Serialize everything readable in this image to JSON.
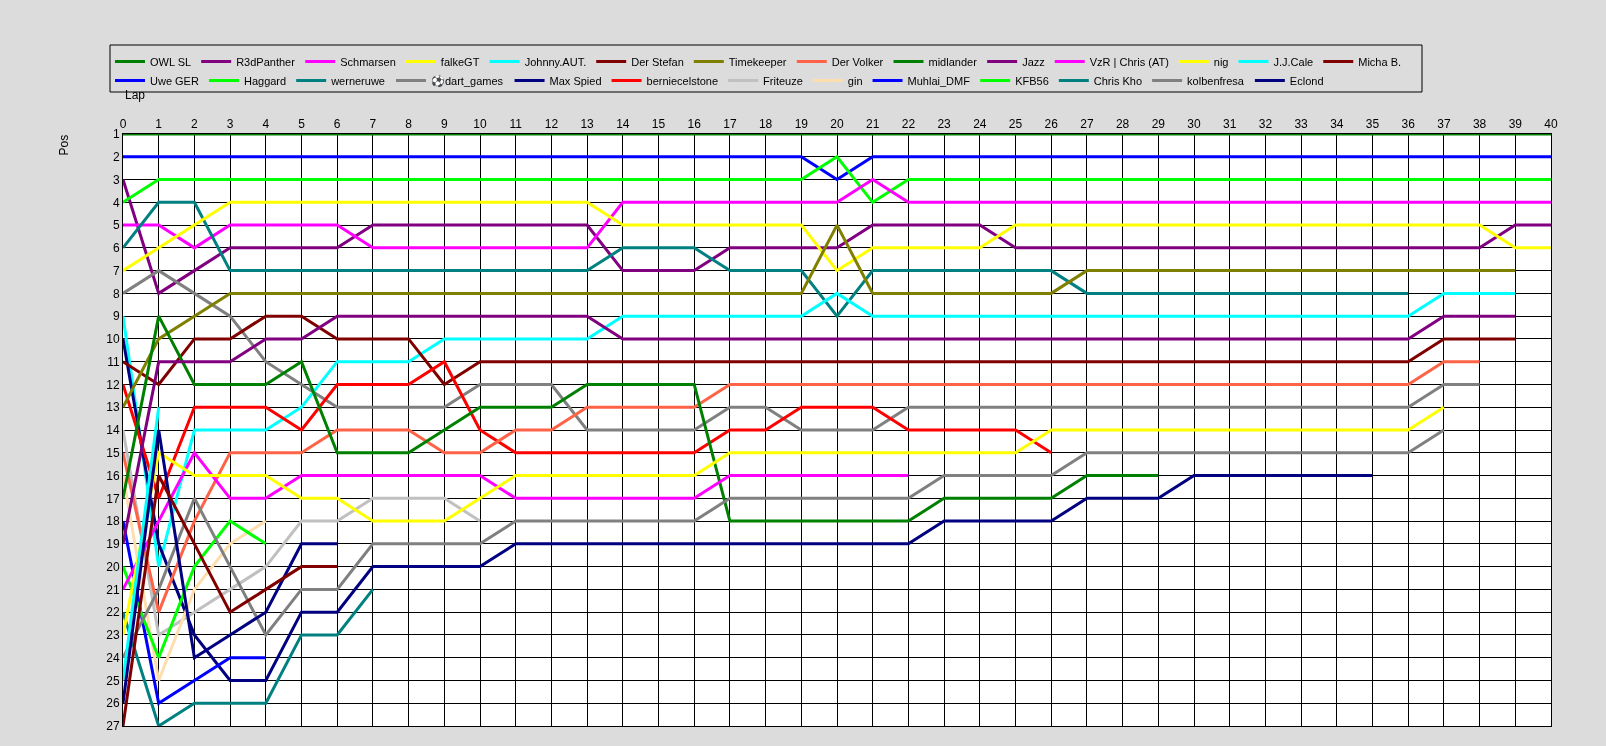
{
  "chart_data": {
    "type": "line",
    "xlabel": "Lap",
    "ylabel": "Pos",
    "x": [
      0,
      1,
      2,
      3,
      4,
      5,
      6,
      7,
      8,
      9,
      10,
      11,
      12,
      13,
      14,
      15,
      16,
      17,
      18,
      19,
      20,
      21,
      22,
      23,
      24,
      25,
      26,
      27,
      28,
      29,
      30,
      31,
      32,
      33,
      34,
      35,
      36,
      37,
      38,
      39,
      40
    ],
    "xlim": [
      0,
      40
    ],
    "xticks": [
      0,
      1,
      2,
      3,
      4,
      5,
      6,
      7,
      8,
      9,
      10,
      11,
      12,
      13,
      14,
      15,
      16,
      17,
      18,
      19,
      20,
      21,
      22,
      23,
      24,
      25,
      26,
      27,
      28,
      29,
      30,
      31,
      32,
      33,
      34,
      35,
      36,
      37,
      38,
      39,
      40
    ],
    "ylim": [
      27,
      1
    ],
    "yticks": [
      1,
      2,
      3,
      4,
      5,
      6,
      7,
      8,
      9,
      10,
      11,
      12,
      13,
      14,
      15,
      16,
      17,
      18,
      19,
      20,
      21,
      22,
      23,
      24,
      25,
      26,
      27
    ],
    "grid": true,
    "legend": "top",
    "marker": "none",
    "line_style": "solid",
    "series": [
      {
        "name": "OWL SL",
        "color": "#008000",
        "values": [
          1,
          1,
          1,
          1,
          1,
          1,
          1,
          1,
          1,
          1,
          1,
          1,
          1,
          1,
          1,
          1,
          1,
          1,
          1,
          1,
          1,
          1,
          1,
          1,
          1,
          1,
          1,
          1,
          1,
          1,
          1,
          1,
          1,
          1,
          1,
          1,
          1,
          1,
          1,
          1,
          1
        ]
      },
      {
        "name": "Uwe GER",
        "color": "#0000ff",
        "values": [
          2,
          2,
          2,
          2,
          2,
          2,
          2,
          2,
          2,
          2,
          2,
          2,
          2,
          2,
          2,
          2,
          2,
          2,
          2,
          2,
          3,
          2,
          2,
          2,
          2,
          2,
          2,
          2,
          2,
          2,
          2,
          2,
          2,
          2,
          2,
          2,
          2,
          2,
          2,
          2,
          2
        ]
      },
      {
        "name": "R3dPanther",
        "color": "#800080",
        "values": [
          3,
          8,
          7,
          6,
          6,
          6,
          6,
          5,
          5,
          5,
          5,
          5,
          5,
          5,
          7,
          7,
          7,
          6,
          6,
          6,
          6,
          5,
          5,
          5,
          5,
          6,
          6,
          6,
          6,
          6,
          6,
          6,
          6,
          6,
          6,
          6,
          6,
          6,
          6,
          5,
          5
        ]
      },
      {
        "name": "Haggard",
        "color": "#00ff00",
        "values": [
          4,
          3,
          3,
          3,
          3,
          3,
          3,
          3,
          3,
          3,
          3,
          3,
          3,
          3,
          3,
          3,
          3,
          3,
          3,
          3,
          2,
          4,
          3,
          3,
          3,
          3,
          3,
          3,
          3,
          3,
          3,
          3,
          3,
          3,
          3,
          3,
          3,
          3,
          3,
          3,
          3
        ]
      },
      {
        "name": "Schmarsen",
        "color": "#ff00ff",
        "values": [
          5,
          5,
          6,
          5,
          5,
          5,
          5,
          6,
          6,
          6,
          6,
          6,
          6,
          6,
          4,
          4,
          4,
          4,
          4,
          4,
          4,
          3,
          4,
          4,
          4,
          4,
          4,
          4,
          4,
          4,
          4,
          4,
          4,
          4,
          4,
          4,
          4,
          4,
          4,
          4,
          4
        ]
      },
      {
        "name": "werneruwe",
        "color": "#008080",
        "values": [
          6,
          4,
          4,
          7,
          7,
          7,
          7,
          7,
          7,
          7,
          7,
          7,
          7,
          7,
          6,
          6,
          6,
          7,
          7,
          7,
          9,
          7,
          7,
          7,
          7,
          7,
          7,
          8,
          8,
          8,
          8,
          8,
          8,
          8,
          8,
          8,
          8,
          null,
          null,
          null,
          null
        ]
      },
      {
        "name": "falkeGT",
        "color": "#ffff00",
        "values": [
          7,
          6,
          5,
          4,
          4,
          4,
          4,
          4,
          4,
          4,
          4,
          4,
          4,
          4,
          5,
          5,
          5,
          5,
          5,
          5,
          7,
          6,
          6,
          6,
          6,
          5,
          5,
          5,
          5,
          5,
          5,
          5,
          5,
          5,
          5,
          5,
          5,
          5,
          5,
          6,
          6
        ]
      },
      {
        "name": "⚽dart_games",
        "color": "#808080",
        "values": [
          8,
          7,
          8,
          9,
          11,
          12,
          13,
          13,
          13,
          13,
          12,
          12,
          12,
          14,
          14,
          14,
          14,
          13,
          13,
          14,
          14,
          14,
          13,
          13,
          13,
          13,
          13,
          13,
          13,
          13,
          13,
          13,
          13,
          13,
          13,
          13,
          13,
          12,
          12,
          null,
          null
        ]
      },
      {
        "name": "Johnny.AUT.",
        "color": "#00ffff",
        "values": [
          9,
          20,
          14,
          14,
          14,
          13,
          11,
          11,
          11,
          10,
          10,
          10,
          10,
          10,
          9,
          9,
          9,
          9,
          9,
          9,
          8,
          9,
          9,
          9,
          9,
          9,
          9,
          9,
          9,
          9,
          9,
          9,
          9,
          9,
          9,
          9,
          9,
          8,
          8,
          8,
          null
        ]
      },
      {
        "name": "Max Spied",
        "color": "#000080",
        "values": [
          10,
          19,
          23,
          25,
          25,
          22,
          22,
          20,
          20,
          20,
          20,
          19,
          19,
          19,
          19,
          19,
          19,
          19,
          19,
          19,
          19,
          19,
          19,
          18,
          18,
          18,
          18,
          17,
          17,
          17,
          16,
          16,
          16,
          16,
          16,
          16,
          null,
          null,
          null,
          null,
          null
        ]
      },
      {
        "name": "Der Stefan",
        "color": "#800000",
        "values": [
          11,
          12,
          10,
          10,
          9,
          9,
          10,
          10,
          10,
          12,
          11,
          11,
          11,
          11,
          11,
          11,
          11,
          11,
          11,
          11,
          11,
          11,
          11,
          11,
          11,
          11,
          11,
          11,
          11,
          11,
          11,
          11,
          11,
          11,
          11,
          11,
          11,
          10,
          10,
          10,
          null
        ]
      },
      {
        "name": "berniecelstone",
        "color": "#ff0000",
        "values": [
          12,
          17,
          13,
          13,
          13,
          14,
          12,
          12,
          12,
          11,
          14,
          15,
          15,
          15,
          15,
          15,
          15,
          14,
          14,
          13,
          13,
          13,
          14,
          14,
          14,
          14,
          15,
          null,
          null,
          null,
          null,
          null,
          null,
          null,
          null,
          null,
          null,
          null,
          null,
          null,
          null
        ]
      },
      {
        "name": "Timekeeper",
        "color": "#808000",
        "values": [
          13,
          10,
          9,
          8,
          8,
          8,
          8,
          8,
          8,
          8,
          8,
          8,
          8,
          8,
          8,
          8,
          8,
          8,
          8,
          8,
          5,
          8,
          8,
          8,
          8,
          8,
          8,
          7,
          7,
          7,
          7,
          7,
          7,
          7,
          7,
          7,
          7,
          7,
          7,
          7,
          null
        ]
      },
      {
        "name": "Friteuze",
        "color": "#c0c0c0",
        "values": [
          14,
          23,
          22,
          21,
          20,
          18,
          18,
          17,
          17,
          17,
          18,
          null,
          null,
          null,
          null,
          null,
          null,
          null,
          null,
          null,
          null,
          null,
          null,
          null,
          null,
          null,
          null,
          null,
          null,
          null,
          null,
          null,
          null,
          null,
          null,
          null,
          null,
          null,
          null,
          null,
          null
        ]
      },
      {
        "name": "Der Volker",
        "color": "#ff6347",
        "values": [
          15,
          22,
          18,
          15,
          15,
          15,
          14,
          14,
          14,
          15,
          15,
          14,
          14,
          13,
          13,
          13,
          13,
          12,
          12,
          12,
          12,
          12,
          12,
          12,
          12,
          12,
          12,
          12,
          12,
          12,
          12,
          12,
          12,
          12,
          12,
          12,
          12,
          11,
          11,
          null,
          null
        ]
      },
      {
        "name": "gin",
        "color": "#ffdead",
        "values": [
          16,
          25,
          21,
          19,
          18,
          null,
          null,
          null,
          null,
          null,
          null,
          null,
          null,
          null,
          null,
          null,
          null,
          null,
          null,
          null,
          null,
          null,
          null,
          null,
          null,
          null,
          null,
          null,
          null,
          null,
          null,
          null,
          null,
          null,
          null,
          null,
          null,
          null,
          null,
          null,
          null
        ]
      },
      {
        "name": "midlander",
        "color": "#008000",
        "values": [
          17,
          9,
          12,
          12,
          12,
          11,
          15,
          15,
          15,
          14,
          13,
          13,
          13,
          12,
          12,
          12,
          12,
          18,
          18,
          18,
          18,
          18,
          18,
          17,
          17,
          17,
          17,
          16,
          16,
          16,
          null,
          null,
          null,
          null,
          null,
          null,
          null,
          null,
          null,
          null,
          null
        ]
      },
      {
        "name": "Muhlai_DMF",
        "color": "#0000ff",
        "values": [
          18,
          26,
          25,
          24,
          24,
          null,
          null,
          null,
          null,
          null,
          null,
          null,
          null,
          null,
          null,
          null,
          null,
          null,
          null,
          null,
          null,
          null,
          null,
          null,
          null,
          null,
          null,
          null,
          null,
          null,
          null,
          null,
          null,
          null,
          null,
          null,
          null,
          null,
          null,
          null,
          null
        ]
      },
      {
        "name": "Jazz",
        "color": "#800080",
        "values": [
          19,
          11,
          11,
          11,
          10,
          10,
          9,
          9,
          9,
          9,
          9,
          9,
          9,
          9,
          10,
          10,
          10,
          10,
          10,
          10,
          10,
          10,
          10,
          10,
          10,
          10,
          10,
          10,
          10,
          10,
          10,
          10,
          10,
          10,
          10,
          10,
          10,
          9,
          9,
          9,
          null
        ]
      },
      {
        "name": "KFB56",
        "color": "#00ff00",
        "values": [
          20,
          24,
          20,
          18,
          19,
          null,
          null,
          null,
          null,
          null,
          null,
          null,
          null,
          null,
          null,
          null,
          null,
          null,
          null,
          null,
          null,
          null,
          null,
          null,
          null,
          null,
          null,
          null,
          null,
          null,
          null,
          null,
          null,
          null,
          null,
          null,
          null,
          null,
          null,
          null,
          null
        ]
      },
      {
        "name": "VzR | Chris (AT)",
        "color": "#ff00ff",
        "values": [
          21,
          18,
          15,
          17,
          17,
          16,
          16,
          16,
          16,
          16,
          16,
          17,
          17,
          17,
          17,
          17,
          17,
          16,
          16,
          16,
          16,
          16,
          16,
          null,
          null,
          null,
          null,
          null,
          null,
          null,
          null,
          null,
          null,
          null,
          null,
          null,
          null,
          null,
          null,
          null,
          null
        ]
      },
      {
        "name": "Chris Kho",
        "color": "#008080",
        "values": [
          22,
          27,
          26,
          26,
          26,
          23,
          23,
          21,
          null,
          null,
          null,
          null,
          null,
          null,
          null,
          null,
          null,
          null,
          null,
          null,
          null,
          null,
          null,
          null,
          null,
          null,
          null,
          null,
          null,
          null,
          null,
          null,
          null,
          null,
          null,
          null,
          null,
          null,
          null,
          null,
          null
        ]
      },
      {
        "name": "nig",
        "color": "#ffff00",
        "values": [
          23,
          15,
          16,
          16,
          16,
          17,
          17,
          18,
          18,
          18,
          17,
          16,
          16,
          16,
          16,
          16,
          16,
          15,
          15,
          15,
          15,
          15,
          15,
          15,
          15,
          15,
          14,
          14,
          14,
          14,
          14,
          14,
          14,
          14,
          14,
          14,
          14,
          13,
          null,
          null,
          null
        ]
      },
      {
        "name": "kolbenfresa",
        "color": "#808080",
        "values": [
          24,
          21,
          17,
          20,
          23,
          21,
          21,
          19,
          19,
          19,
          19,
          18,
          18,
          18,
          18,
          18,
          18,
          17,
          17,
          17,
          17,
          17,
          17,
          16,
          16,
          16,
          16,
          15,
          15,
          15,
          15,
          15,
          15,
          15,
          15,
          15,
          15,
          14,
          null,
          null,
          null
        ]
      },
      {
        "name": "J.J.Cale",
        "color": "#00ffff",
        "values": [
          25,
          13,
          null,
          null,
          null,
          null,
          null,
          null,
          null,
          null,
          null,
          null,
          null,
          null,
          null,
          null,
          null,
          null,
          null,
          null,
          null,
          null,
          null,
          null,
          null,
          null,
          null,
          null,
          null,
          null,
          null,
          null,
          null,
          null,
          null,
          null,
          null,
          null,
          null,
          null,
          null
        ]
      },
      {
        "name": "Eclond",
        "color": "#000080",
        "values": [
          26,
          14,
          24,
          23,
          22,
          19,
          19,
          null,
          null,
          null,
          null,
          null,
          null,
          null,
          null,
          null,
          null,
          null,
          null,
          null,
          null,
          null,
          null,
          null,
          null,
          null,
          null,
          null,
          null,
          null,
          null,
          null,
          null,
          null,
          null,
          null,
          null,
          null,
          null,
          null,
          null
        ]
      },
      {
        "name": "Micha B.",
        "color": "#800000",
        "values": [
          27,
          16,
          19,
          22,
          21,
          20,
          20,
          null,
          null,
          null,
          null,
          null,
          null,
          null,
          null,
          null,
          null,
          null,
          null,
          null,
          null,
          null,
          null,
          null,
          null,
          null,
          null,
          null,
          null,
          null,
          null,
          null,
          null,
          null,
          null,
          null,
          null,
          null,
          null,
          null,
          null
        ]
      }
    ]
  }
}
